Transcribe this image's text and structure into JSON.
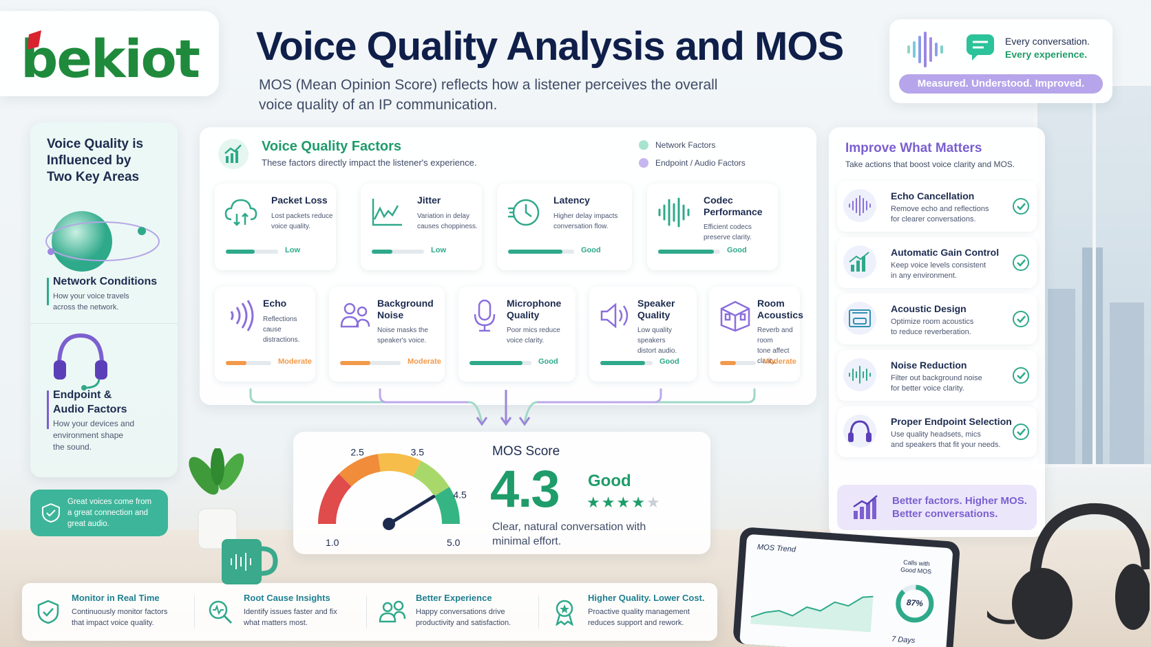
{
  "brand": {
    "logo_text": "bekiot",
    "green": "#1f8a3c",
    "red": "#d9232e"
  },
  "header": {
    "title": "Voice Quality Analysis and MOS",
    "subtitle_1": "MOS (Mean Opinion Score) reflects how a listener perceives the overall",
    "subtitle_2": "voice quality of an IP communication."
  },
  "tagline": {
    "line1": "Every conversation.",
    "line2": "Every experience.",
    "pill": "Measured. Understood. Improved."
  },
  "left": {
    "heading_1": "Voice Quality is",
    "heading_2": "Influenced by",
    "heading_3": "Two Key Areas",
    "network_title": "Network Conditions",
    "network_desc_1": "How your voice travels",
    "network_desc_2": "across the network.",
    "endpoint_title_1": "Endpoint &",
    "endpoint_title_2": "Audio Factors",
    "endpoint_desc_1": "How your devices and",
    "endpoint_desc_2": "environment shape",
    "endpoint_desc_3": "the sound.",
    "callout_1": "Great voices come from",
    "callout_2": "a great connection and",
    "callout_3": "great audio."
  },
  "factors": {
    "title": "Voice Quality Factors",
    "subtitle": "These factors directly impact the listener's experience.",
    "legend": [
      {
        "label": "Network Factors",
        "color": "#a8e3cf"
      },
      {
        "label": "Endpoint / Audio Factors",
        "color": "#c6b6ef"
      }
    ],
    "network": [
      {
        "title_1": "Packet Loss",
        "title_2": "",
        "desc_1": "Lost packets reduce",
        "desc_2": "voice quality.",
        "level": "Low",
        "fill": 0.55
      },
      {
        "title_1": "Jitter",
        "title_2": "",
        "desc_1": "Variation in delay",
        "desc_2": "causes choppiness.",
        "level": "Low",
        "fill": 0.4
      },
      {
        "title_1": "Latency",
        "title_2": "",
        "desc_1": "Higher delay impacts",
        "desc_2": "conversation flow.",
        "level": "Good",
        "fill": 0.82
      },
      {
        "title_1": "Codec",
        "title_2": "Performance",
        "desc_1": "Efficient codecs",
        "desc_2": "preserve clarity.",
        "level": "Good",
        "fill": 0.9
      }
    ],
    "endpoint": [
      {
        "title_1": "Echo",
        "title_2": "",
        "desc_1": "Reflections cause",
        "desc_2": "distractions.",
        "level": "Moderate",
        "fill": 0.45
      },
      {
        "title_1": "Background",
        "title_2": "Noise",
        "desc_1": "Noise masks the",
        "desc_2": "speaker's voice.",
        "level": "Moderate",
        "fill": 0.5
      },
      {
        "title_1": "Microphone",
        "title_2": "Quality",
        "desc_1": "Poor mics reduce",
        "desc_2": "voice clarity.",
        "level": "Good",
        "fill": 0.85
      },
      {
        "title_1": "Speaker",
        "title_2": "Quality",
        "desc_1": "Low quality speakers",
        "desc_2": "distort audio.",
        "level": "Good",
        "fill": 0.85
      },
      {
        "title_1": "Room",
        "title_2": "Acoustics",
        "desc_1": "Reverb and room",
        "desc_2": "tone affect clarity.",
        "level": "Moderate",
        "fill": 0.45
      }
    ]
  },
  "mos": {
    "label": "MOS Score",
    "value": "4.3",
    "rating": "Good",
    "stars": 4,
    "desc_1": "Clear, natural conversation with",
    "desc_2": "minimal effort.",
    "gauge_labels": {
      "min": "1.0",
      "t1": "2.5",
      "t2": "3.5",
      "t3": "4.5",
      "max": "5.0"
    },
    "needle_value": 4.3
  },
  "improve": {
    "title": "Improve What Matters",
    "subtitle": "Take actions that boost voice clarity and MOS.",
    "items": [
      {
        "title": "Echo Cancellation",
        "desc_1": "Remove echo and reflections",
        "desc_2": "for clearer conversations."
      },
      {
        "title": "Automatic Gain Control",
        "desc_1": "Keep voice levels consistent",
        "desc_2": "in any environment."
      },
      {
        "title": "Acoustic Design",
        "desc_1": "Optimize room acoustics",
        "desc_2": "to reduce reverberation."
      },
      {
        "title": "Noise Reduction",
        "desc_1": "Filter out background noise",
        "desc_2": "for better voice clarity."
      },
      {
        "title": "Proper Endpoint Selection",
        "desc_1": "Use quality headsets, mics",
        "desc_2": "and speakers that fit your needs."
      }
    ],
    "banner_1": "Better factors. Higher MOS.",
    "banner_2": "Better conversations."
  },
  "bottom": [
    {
      "title": "Monitor in Real Time",
      "desc_1": "Continuously monitor factors",
      "desc_2": "that impact voice quality."
    },
    {
      "title": "Root Cause Insights",
      "desc_1": "Identify issues faster and fix",
      "desc_2": "what matters most."
    },
    {
      "title": "Better Experience",
      "desc_1": "Happy conversations drive",
      "desc_2": "productivity and satisfaction."
    },
    {
      "title": "Higher Quality. Lower Cost.",
      "desc_1": "Proactive quality management",
      "desc_2": "reduces support and rework."
    }
  ],
  "tablet": {
    "title": "MOS Trend",
    "calls_1": "Calls with",
    "calls_2": "Good MOS",
    "percent": "87%",
    "percent_value": 87,
    "period": "7 Days"
  }
}
